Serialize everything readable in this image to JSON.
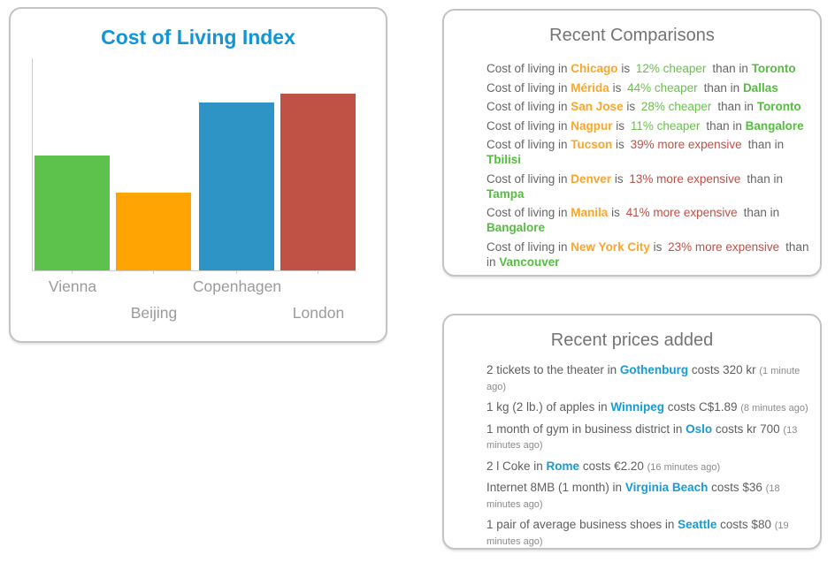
{
  "chart_panel": {
    "title": "Cost of Living Index",
    "title_color": "#1195d6",
    "chart_data": {
      "type": "bar",
      "categories": [
        "Vienna",
        "Beijing",
        "Copenhagen",
        "London"
      ],
      "values": [
        65,
        44,
        95,
        100
      ],
      "colors": [
        "#5cc24b",
        "#ffa402",
        "#2e93c5",
        "#bf5145"
      ],
      "title": "Cost of Living Index",
      "xlabel": "",
      "ylabel": "",
      "ylim": [
        0,
        120
      ],
      "grid": false,
      "legend": false,
      "label_layout": "staggered-two-rows",
      "axis_color": "#cccccc",
      "label_color": "#9b9b9b"
    }
  },
  "comparisons_panel": {
    "title": "Recent Comparisons",
    "items": [
      {
        "prefix": "Cost of living in",
        "city1": "Chicago",
        "is": "is",
        "percent": "12% cheaper",
        "direction": "cheaper",
        "than": "than in",
        "city2": "Toronto"
      },
      {
        "prefix": "Cost of living in",
        "city1": "Mérida",
        "is": "is",
        "percent": "44% cheaper",
        "direction": "cheaper",
        "than": "than in",
        "city2": "Dallas"
      },
      {
        "prefix": "Cost of living in",
        "city1": "San Jose",
        "is": "is",
        "percent": "28% cheaper",
        "direction": "cheaper",
        "than": "than in",
        "city2": "Toronto"
      },
      {
        "prefix": "Cost of living in",
        "city1": "Nagpur",
        "is": "is",
        "percent": "11% cheaper",
        "direction": "cheaper",
        "than": "than in",
        "city2": "Bangalore"
      },
      {
        "prefix": "Cost of living in",
        "city1": "Tucson",
        "is": "is",
        "percent": "39% more expensive",
        "direction": "expensive",
        "than": "than in",
        "city2": "Tbilisi"
      },
      {
        "prefix": "Cost of living in",
        "city1": "Denver",
        "is": "is",
        "percent": "13% more expensive",
        "direction": "expensive",
        "than": "than in",
        "city2": "Tampa"
      },
      {
        "prefix": "Cost of living in",
        "city1": "Manila",
        "is": "is",
        "percent": "41% more expensive",
        "direction": "expensive",
        "than": "than in",
        "city2": "Bangalore"
      },
      {
        "prefix": "Cost of living in",
        "city1": "New York City",
        "is": "is",
        "percent": "23% more expensive",
        "direction": "expensive",
        "than": "than in",
        "city2": "Vancouver"
      }
    ]
  },
  "prices_panel": {
    "title": "Recent prices added",
    "items": [
      {
        "prefix": "2 tickets to the theater in",
        "city": "Gothenburg",
        "suffix": "costs 320 kr",
        "time": "(1 minute ago)"
      },
      {
        "prefix": "1 kg (2 lb.) of apples in",
        "city": "Winnipeg",
        "suffix": "costs C$1.89",
        "time": "(8 minutes ago)"
      },
      {
        "prefix": "1 month of gym in business district in",
        "city": "Oslo",
        "suffix": "costs kr 700",
        "time": "(13 minutes ago)"
      },
      {
        "prefix": "2 l Coke in",
        "city": "Rome",
        "suffix": "costs €2.20",
        "time": "(16 minutes ago)"
      },
      {
        "prefix": "Internet 8MB (1 month) in",
        "city": "Virginia Beach",
        "suffix": "costs $36",
        "time": "(18 minutes ago)"
      },
      {
        "prefix": "1 pair of average business shoes in",
        "city": "Seattle",
        "suffix": "costs $80",
        "time": "(19 minutes ago)"
      }
    ]
  },
  "colors": {
    "panel_border": "#c3c3c3",
    "header_text": "#747474",
    "body_text": "#666666",
    "city_orange": "#fba62a",
    "percent_green": "#6cc04f",
    "city_green": "#55bd40",
    "percent_red": "#bf5047",
    "city_blue": "#189bd5",
    "timestamp_gray": "#8a8a8a"
  }
}
